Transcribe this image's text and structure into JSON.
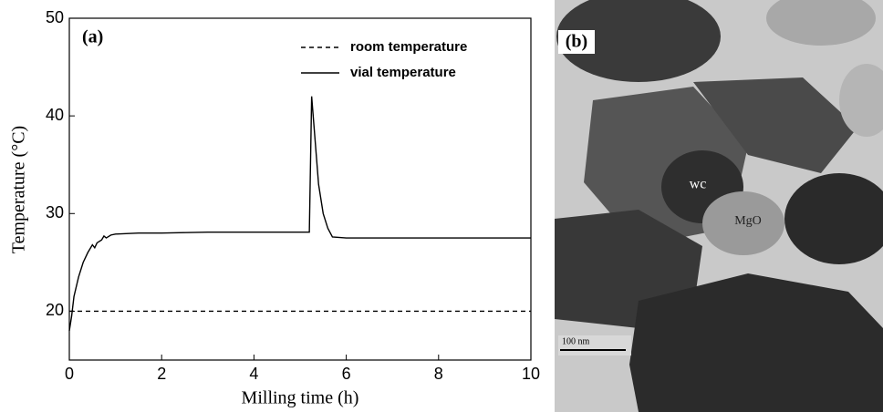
{
  "chart_data": {
    "type": "line",
    "panel_label": "(a)",
    "xlabel": "Milling time (h)",
    "ylabel": "Temperature (°C)",
    "xlim": [
      0,
      10
    ],
    "xticks": [
      0,
      2,
      4,
      6,
      8,
      10
    ],
    "ylim": [
      15,
      50
    ],
    "yticks": [
      20,
      30,
      40,
      50
    ],
    "legend": "upper right",
    "series": [
      {
        "name": "room temperature",
        "color": "#000000",
        "style": "dashed",
        "x": [
          0,
          10
        ],
        "values": [
          20,
          20
        ]
      },
      {
        "name": "vial temperature",
        "color": "#000000",
        "style": "solid",
        "x": [
          0,
          0.05,
          0.1,
          0.2,
          0.3,
          0.4,
          0.5,
          0.55,
          0.6,
          0.7,
          0.75,
          0.8,
          0.9,
          1.0,
          1.5,
          2,
          3,
          4,
          5.2,
          5.25,
          5.3,
          5.4,
          5.5,
          5.6,
          5.7,
          6,
          8,
          10
        ],
        "values": [
          18,
          19.5,
          21.5,
          23.5,
          25,
          26,
          26.8,
          26.5,
          27,
          27.3,
          27.7,
          27.5,
          27.8,
          27.9,
          28,
          28,
          28.1,
          28.1,
          28.1,
          42,
          39,
          33,
          30,
          28.5,
          27.6,
          27.5,
          27.5,
          27.5
        ]
      }
    ]
  },
  "image_panel": {
    "label": "(b)",
    "annotations": [
      "wc",
      "MgO"
    ],
    "scale_bar": "100 nm"
  }
}
